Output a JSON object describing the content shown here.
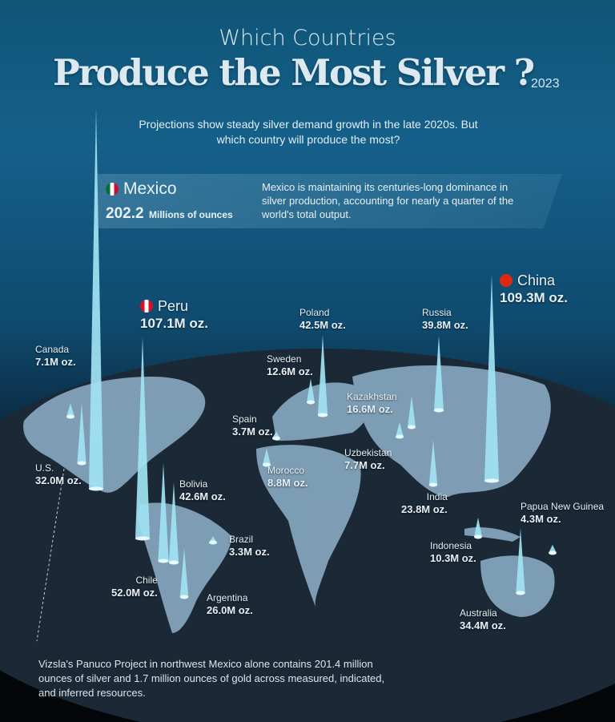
{
  "header": {
    "title_line1": "Which Countries",
    "title_line2": "Produce the Most Silver ?",
    "year": "2023",
    "subtitle": "Projections show steady silver demand growth in the late 2020s. But which country will produce the most?"
  },
  "callout": {
    "country": "Mexico",
    "value": "202.2",
    "unit": "Millions of ounces",
    "description": "Mexico is maintaining its centuries-long dominance in silver production, accounting for nearly a quarter of the world's total output."
  },
  "footer": "Vizsla's Panuco Project in northwest Mexico alone contains 201.4 million ounces of silver and 1.7 million ounces of gold across measured, indicated, and inferred resources.",
  "colors": {
    "spike": "#9fe3f2",
    "land": "#a9c7dc",
    "globe": "#1c2a38"
  },
  "chart_data": {
    "type": "map-spikes",
    "unit": "million ounces",
    "year": "2023",
    "countries": [
      {
        "name": "Mexico",
        "value": 202.2,
        "label": "202.2"
      },
      {
        "name": "China",
        "value": 109.3,
        "label": "109.3M oz."
      },
      {
        "name": "Peru",
        "value": 107.1,
        "label": "107.1M oz."
      },
      {
        "name": "Chile",
        "value": 52.0,
        "label": "52.0M oz."
      },
      {
        "name": "Bolivia",
        "value": 42.6,
        "label": "42.6M oz."
      },
      {
        "name": "Poland",
        "value": 42.5,
        "label": "42.5M oz."
      },
      {
        "name": "Russia",
        "value": 39.8,
        "label": "39.8M oz."
      },
      {
        "name": "Australia",
        "value": 34.4,
        "label": "34.4M oz."
      },
      {
        "name": "U.S.",
        "value": 32.0,
        "label": "32.0M oz."
      },
      {
        "name": "Argentina",
        "value": 26.0,
        "label": "26.0M oz."
      },
      {
        "name": "India",
        "value": 23.8,
        "label": "23.8M oz."
      },
      {
        "name": "Kazakhstan",
        "value": 16.6,
        "label": "16.6M oz."
      },
      {
        "name": "Sweden",
        "value": 12.6,
        "label": "12.6M oz."
      },
      {
        "name": "Indonesia",
        "value": 10.3,
        "label": "10.3M oz."
      },
      {
        "name": "Morocco",
        "value": 8.8,
        "label": "8.8M oz."
      },
      {
        "name": "Uzbekistan",
        "value": 7.7,
        "label": "7.7M oz."
      },
      {
        "name": "Canada",
        "value": 7.1,
        "label": "7.1M oz."
      },
      {
        "name": "Papua New Guinea",
        "value": 4.3,
        "label": "4.3M oz."
      },
      {
        "name": "Spain",
        "value": 3.7,
        "label": "3.7M oz."
      },
      {
        "name": "Brazil",
        "value": 3.3,
        "label": "3.3M oz."
      }
    ]
  }
}
